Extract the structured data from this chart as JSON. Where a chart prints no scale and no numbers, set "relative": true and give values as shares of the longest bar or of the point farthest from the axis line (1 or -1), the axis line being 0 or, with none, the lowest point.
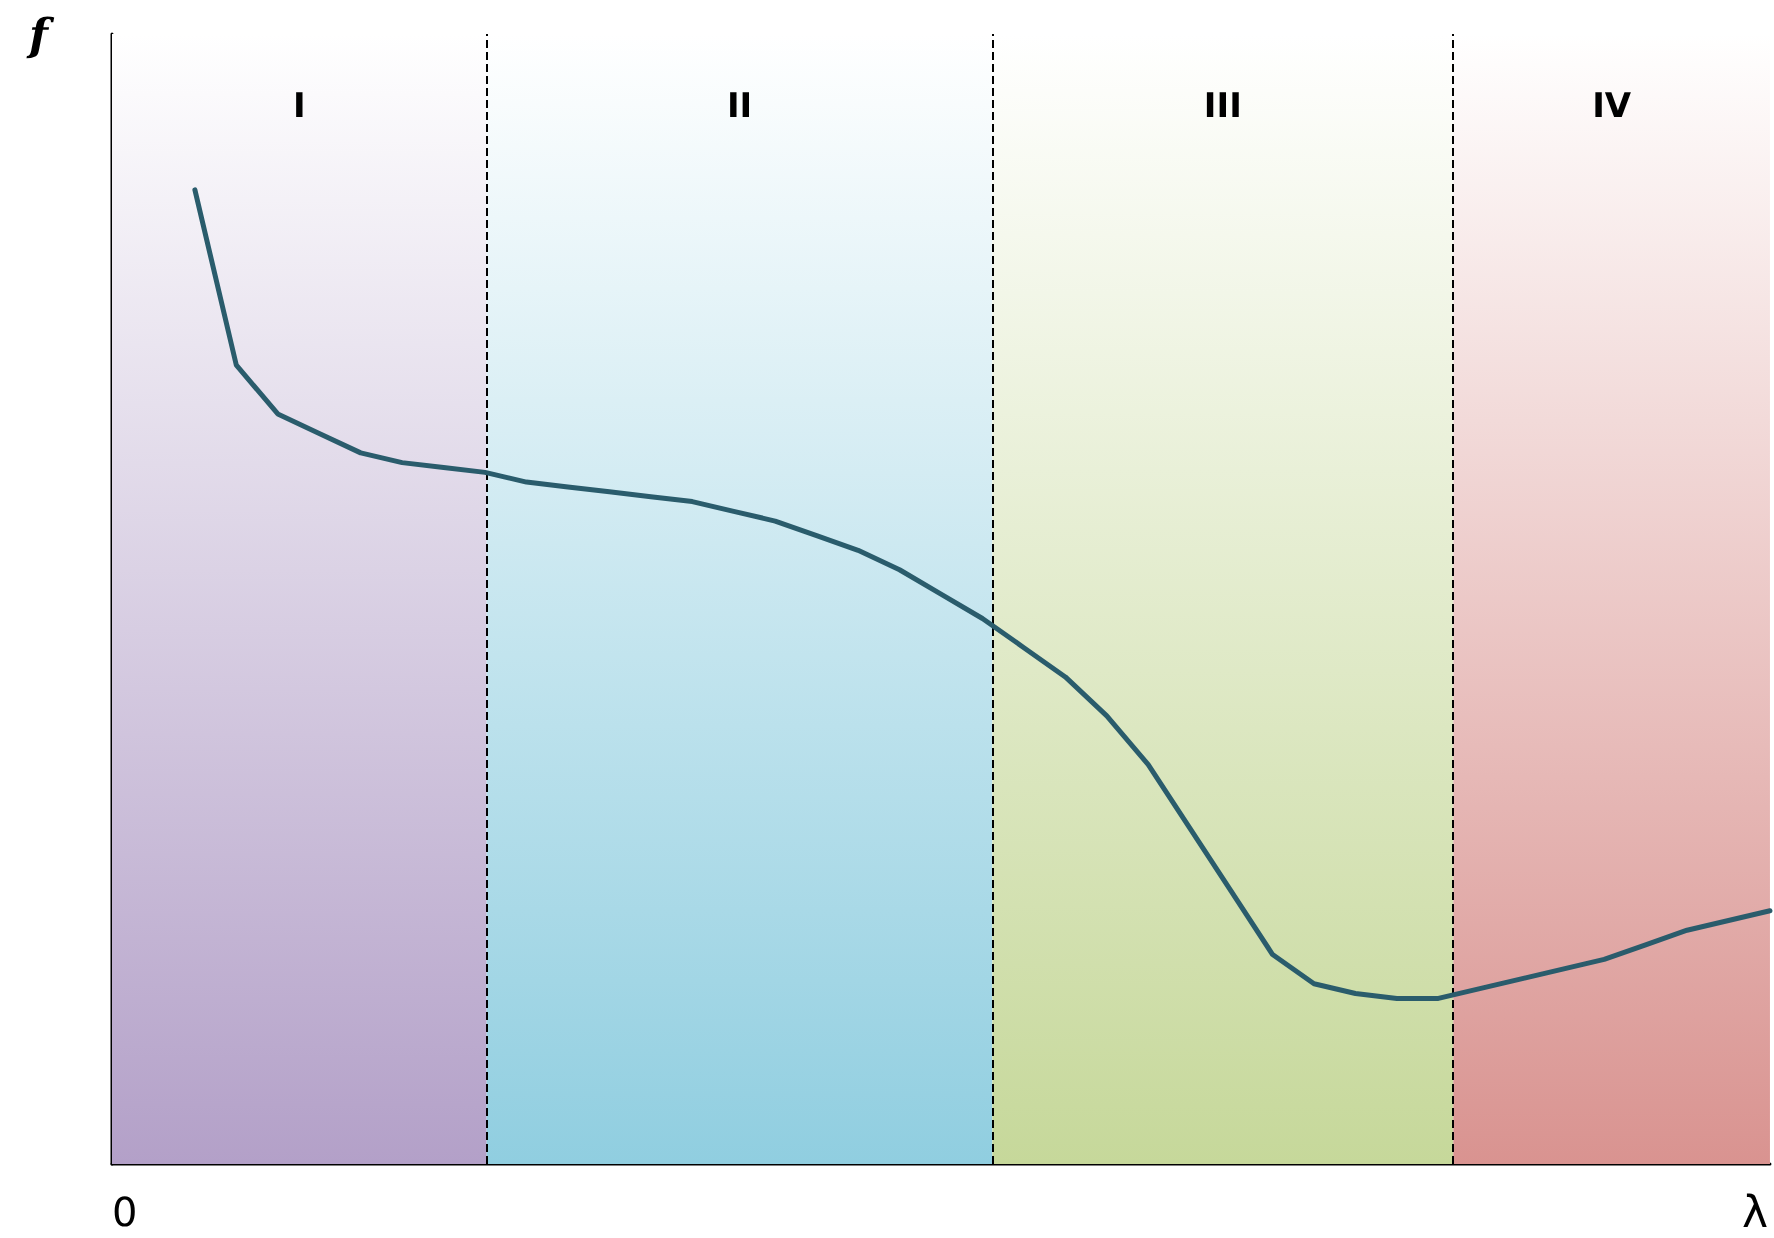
{
  "chart_data": {
    "type": "line",
    "relative": true,
    "xlabel": "λ",
    "ylabel": "f",
    "annotations": [
      "0",
      "I",
      "II",
      "III",
      "IV"
    ],
    "grid": false,
    "marker": "none",
    "line_style": "solid",
    "categories": [
      null,
      null,
      null,
      null,
      null,
      null,
      null,
      null,
      null,
      null,
      null,
      null,
      null,
      null,
      null,
      null,
      null,
      null,
      null,
      null,
      null,
      null,
      null,
      null,
      null,
      null,
      null,
      null,
      null,
      null,
      null,
      null,
      null,
      null,
      null,
      null,
      null,
      null,
      null,
      null,
      null
    ],
    "series": [
      {
        "color": "#2a5c6c",
        "values": [
          null,
          null,
          1.0,
          0.82,
          0.77,
          0.75,
          0.73,
          0.72,
          0.715,
          0.71,
          0.7,
          0.695,
          0.69,
          0.685,
          0.68,
          0.67,
          0.66,
          0.645,
          0.63,
          0.61,
          0.585,
          0.56,
          0.53,
          0.5,
          0.46,
          0.41,
          0.345,
          0.28,
          0.215,
          0.185,
          0.175,
          0.17,
          0.17,
          0.18,
          0.19,
          0.2,
          0.21,
          0.225,
          0.24,
          0.25,
          0.26
        ]
      }
    ]
  }
}
